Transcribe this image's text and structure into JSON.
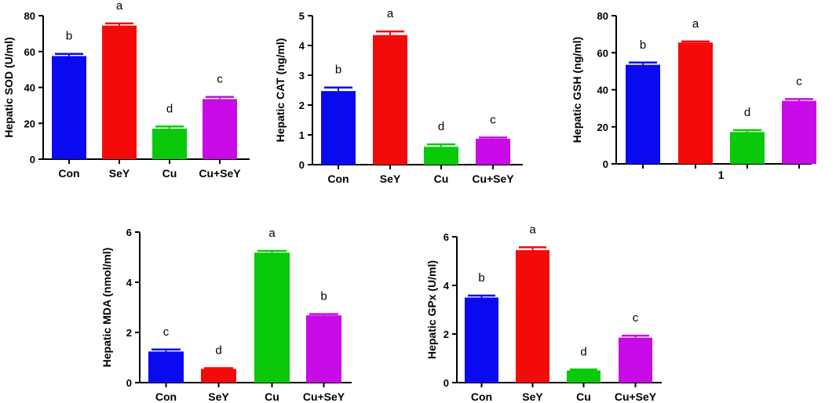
{
  "colors": {
    "Con": "#0a0af0",
    "SeY": "#f50a0a",
    "Cu": "#0ac80a",
    "Cu+SeY": "#c80ae6",
    "axis": "#000000"
  },
  "chart_data": [
    {
      "id": "sod",
      "type": "bar",
      "ylabel": "Hepatic SOD (U/ml)",
      "categories": [
        "Con",
        "SeY",
        "Cu",
        "Cu+SeY"
      ],
      "values": [
        57.5,
        74.5,
        17,
        33.5
      ],
      "errors": [
        1.2,
        1.2,
        1.2,
        1.2
      ],
      "significance": [
        "b",
        "a",
        "d",
        "c"
      ],
      "ylim": [
        0,
        80
      ],
      "yticks": [
        0,
        20,
        40,
        60,
        80
      ],
      "xlabel": ""
    },
    {
      "id": "cat",
      "type": "bar",
      "ylabel": "Hepatic CAT (ng/ml)",
      "categories": [
        "Con",
        "SeY",
        "Cu",
        "Cu+SeY"
      ],
      "values": [
        2.47,
        4.35,
        0.6,
        0.87
      ],
      "errors": [
        0.12,
        0.12,
        0.08,
        0.04
      ],
      "significance": [
        "b",
        "a",
        "d",
        "c"
      ],
      "ylim": [
        0,
        5
      ],
      "yticks": [
        0,
        1,
        2,
        3,
        4,
        5
      ],
      "xlabel": ""
    },
    {
      "id": "gsh",
      "type": "bar",
      "ylabel": "Hepatic GSH (ng/ml)",
      "categories": [
        "",
        "",
        "",
        ""
      ],
      "values": [
        53.5,
        65.5,
        17.2,
        34
      ],
      "errors": [
        1.2,
        0.6,
        1,
        1
      ],
      "significance": [
        "b",
        "a",
        "d",
        "c"
      ],
      "ylim": [
        0,
        80
      ],
      "yticks": [
        0,
        20,
        40,
        60,
        80
      ],
      "xlabel": "1"
    },
    {
      "id": "mda",
      "type": "bar",
      "ylabel": "Hepatic MDA (nmol/ml)",
      "categories": [
        "Con",
        "SeY",
        "Cu",
        "Cu+SeY"
      ],
      "values": [
        1.24,
        0.55,
        5.18,
        2.68
      ],
      "errors": [
        0.08,
        0.03,
        0.07,
        0.05
      ],
      "significance": [
        "c",
        "d",
        "a",
        "b"
      ],
      "ylim": [
        0,
        6
      ],
      "yticks": [
        0,
        2,
        4,
        6
      ],
      "xlabel": ""
    },
    {
      "id": "gpx",
      "type": "bar",
      "ylabel": "Hepatic GPx (U/ml)",
      "categories": [
        "Con",
        "SeY",
        "Cu",
        "Cu+SeY"
      ],
      "values": [
        3.5,
        5.45,
        0.5,
        1.85
      ],
      "errors": [
        0.08,
        0.12,
        0.04,
        0.08
      ],
      "significance": [
        "b",
        "a",
        "d",
        "c"
      ],
      "ylim": [
        0,
        6
      ],
      "yticks": [
        0,
        2,
        4,
        6
      ],
      "xlabel": ""
    }
  ]
}
